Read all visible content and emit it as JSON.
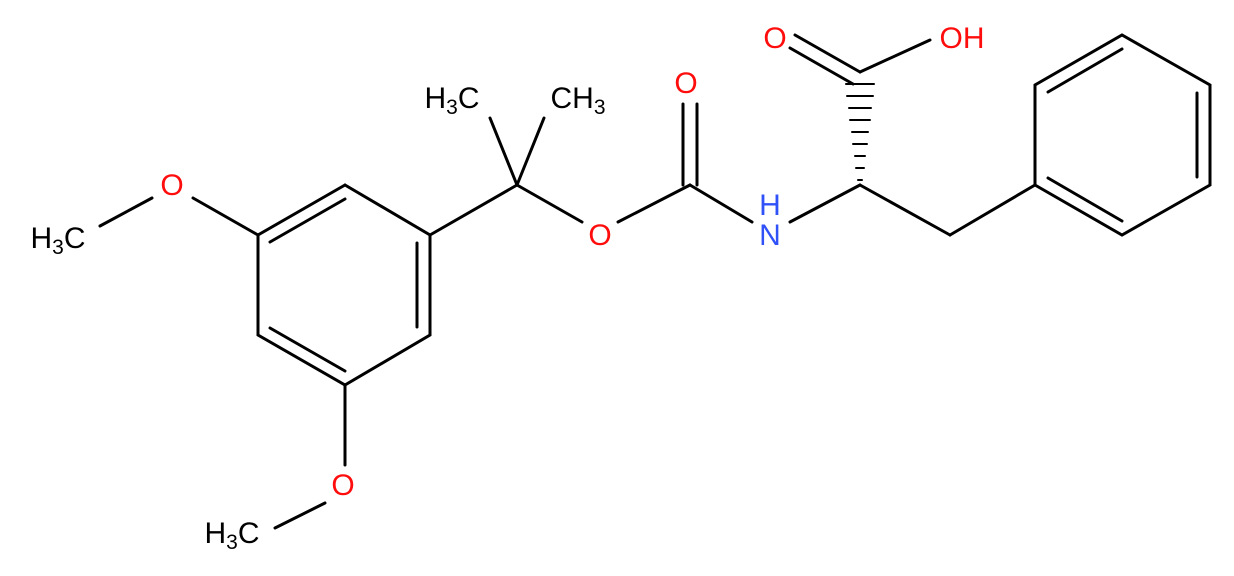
{
  "molecule": {
    "atoms": [
      {
        "text": "H",
        "sub": "3",
        "tail": "C"
      },
      {
        "text": "CH",
        "sub": "3"
      },
      {
        "text": "O"
      },
      {
        "text": "O"
      },
      {
        "text": "H"
      },
      {
        "text": "N"
      },
      {
        "text": "O"
      },
      {
        "text": "OH"
      },
      {
        "text": "O"
      },
      {
        "text": "H",
        "sub": "3",
        "tail": "C"
      },
      {
        "text": "O"
      },
      {
        "text": "H",
        "sub": "3",
        "tail": "C"
      }
    ]
  }
}
